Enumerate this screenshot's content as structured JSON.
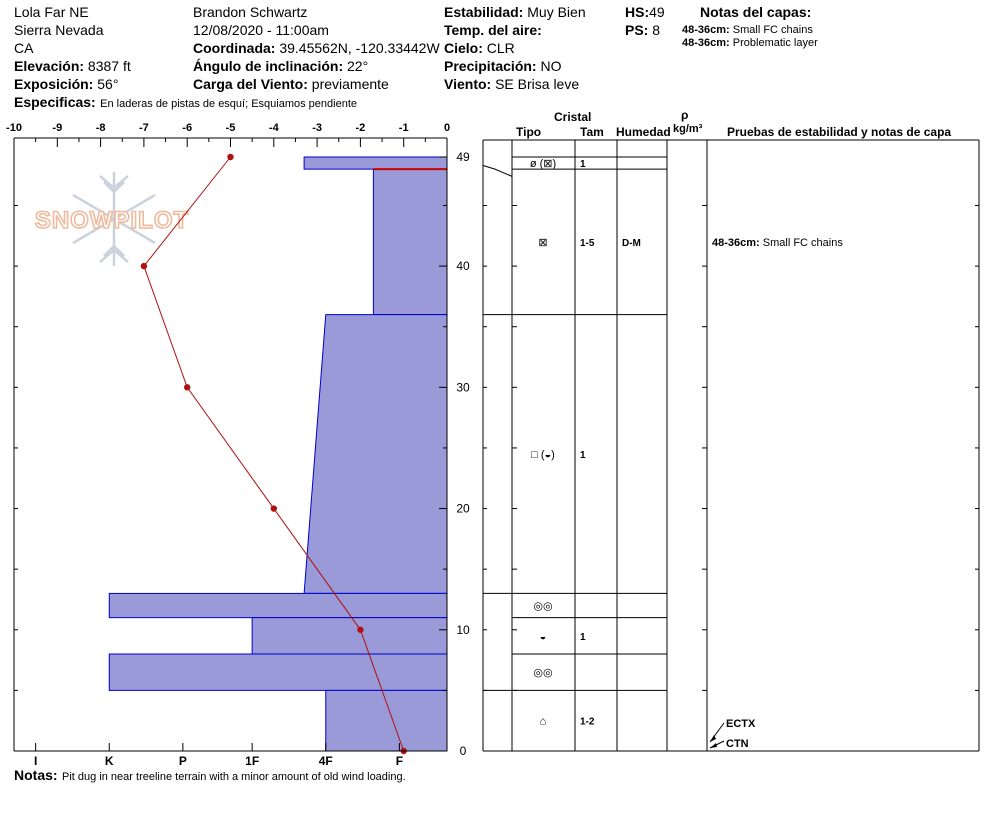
{
  "header": {
    "col1": {
      "location": "Lola Far NE",
      "range": "Sierra Nevada",
      "state": "CA",
      "elevation_label": "Elevación:",
      "elevation": "8387 ft",
      "aspect_label": "Exposición:",
      "aspect": "56°"
    },
    "col2": {
      "observer": "Brandon Schwartz",
      "datetime": "12/08/2020 - 11:00am",
      "coord_label": "Coordinada:",
      "coord": "39.45562N, -120.33442W",
      "slope_label": "Ángulo de inclinación:",
      "slope": "22°",
      "wind_load_label": "Carga del Viento:",
      "wind_load": "previamente"
    },
    "col3": {
      "stability_label": "Estabilidad:",
      "stability": "Muy Bien",
      "air_temp_label": "Temp. del aire:",
      "air_temp": "",
      "sky_label": "Cielo:",
      "sky": "CLR",
      "precip_label": "Precipitación:",
      "precip": "NO",
      "wind_label": "Viento:",
      "wind": "SE  Brisa leve"
    },
    "col4": {
      "hs_label": "HS:",
      "hs": "49",
      "ps_label": "PS:",
      "ps": "8"
    },
    "layer_notes": {
      "title": "Notas del capas:",
      "items": [
        {
          "depth": "48-36cm:",
          "text": "Small FC chains"
        },
        {
          "depth": "48-36cm:",
          "text": "Problematic layer"
        }
      ]
    },
    "specifics_label": "Especificas:",
    "specifics": "En laderas de pistas de esquí; Esquiamos pendiente"
  },
  "footer": {
    "notes_label": "Notas:",
    "notes": "Pit dug in near treeline terrain with a minor amount of old wind loading."
  },
  "watermark": {
    "text": "SNOWPILOT",
    "icon": "snowflake-icon"
  },
  "table": {
    "header_crystal": "Cristal",
    "header_type": "Tipo",
    "header_size": "Tam",
    "header_moisture": "Humedad",
    "header_rho": "ρ",
    "header_density_unit": "kg/m³",
    "header_tests": "Pruebas de estabilidad y notas de capa",
    "rows": [
      {
        "top": 49,
        "bottom": 48,
        "type": "ø (⊠)",
        "size": "1",
        "moisture": ""
      },
      {
        "top": 48,
        "bottom": 36,
        "type": "⊠",
        "size": "1-5",
        "moisture": "D-M"
      },
      {
        "top": 36,
        "bottom": 13,
        "type": "□ (◒)",
        "size": "1",
        "moisture": ""
      },
      {
        "top": 13,
        "bottom": 11,
        "type": "◎◎",
        "size": "",
        "moisture": ""
      },
      {
        "top": 11,
        "bottom": 8,
        "type": "◒",
        "size": "1",
        "moisture": ""
      },
      {
        "top": 8,
        "bottom": 5,
        "type": "◎◎",
        "size": "",
        "moisture": ""
      },
      {
        "top": 5,
        "bottom": 0,
        "type": "⌂",
        "size": "1-2",
        "moisture": ""
      }
    ],
    "layer_comment": {
      "depth": "48-36cm:",
      "text": "Small FC chains"
    },
    "tests": [
      "ECTX",
      "CTN"
    ]
  },
  "chart_data": {
    "type": "line",
    "title": "",
    "temperature_axis": {
      "ticks": [
        "-10",
        "-9",
        "-8",
        "-7",
        "-6",
        "-5",
        "-4",
        "-3",
        "-2",
        "-1",
        "0"
      ],
      "range": [
        -10,
        0
      ]
    },
    "height_axis": {
      "ticks": [
        "49",
        "40",
        "30",
        "20",
        "10",
        "0"
      ],
      "range": [
        0,
        49
      ],
      "unit": "cm"
    },
    "hardness_axis": {
      "ticks": [
        "I",
        "K",
        "P",
        "1F",
        "4F",
        "F"
      ]
    },
    "temperature_profile": {
      "x": [
        -5,
        -7,
        -6,
        -4,
        -2,
        -1
      ],
      "y": [
        49,
        40,
        30,
        20,
        10,
        0
      ]
    },
    "hardness_layers": [
      {
        "top": 49,
        "bottom": 48,
        "temp_extent": -3.3
      },
      {
        "top": 48,
        "bottom": 36,
        "temp_extent": -1.7
      },
      {
        "top": 36,
        "bottom": 13,
        "temp_extent": -2.8,
        "top_extent": -2.8,
        "bottom_extent": -3.3
      },
      {
        "top": 13,
        "bottom": 11,
        "temp_extent": -7.8
      },
      {
        "top": 11,
        "bottom": 8,
        "temp_extent": -4.5
      },
      {
        "top": 8,
        "bottom": 5,
        "temp_extent": -7.8
      },
      {
        "top": 5,
        "bottom": 0,
        "temp_extent": -2.8
      }
    ],
    "colors": {
      "fill": "#9a9ad8",
      "stroke": "#0000cc",
      "profile": "#b01010",
      "weak_layer": "#cc0000"
    }
  }
}
